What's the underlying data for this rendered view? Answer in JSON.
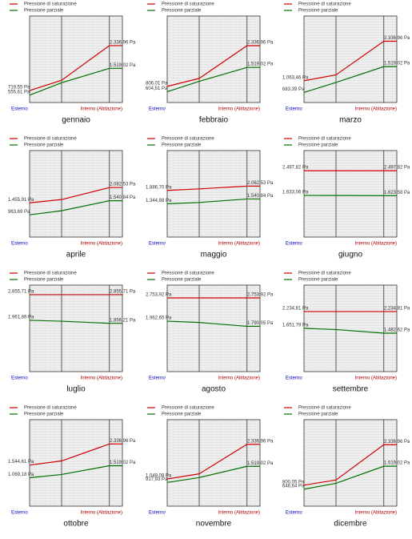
{
  "chart_data": [
    {
      "type": "line",
      "title": "gennaio",
      "categories": [
        "Esterno",
        null,
        null,
        "Interno (Abitazione)"
      ],
      "ylim": [
        290,
        3400
      ],
      "series": [
        {
          "name": "Pressione di saturazione",
          "color": "#d00000",
          "values": [
            719.55,
            1090,
            2336.96,
            2336.96
          ],
          "value_labels": [
            "719,55 Pa",
            null,
            null,
            "2.336,96 Pa"
          ]
        },
        {
          "name": "Pressione parziale",
          "color": "#007000",
          "values": [
            555.61,
            1000,
            1519.02,
            1519.02
          ],
          "value_labels": [
            "555,61 Pa",
            null,
            null,
            "1.519,02 Pa"
          ]
        }
      ]
    },
    {
      "type": "line",
      "title": "febbraio",
      "categories": [
        "Esterno",
        null,
        null,
        "Interno (Abitazione)"
      ],
      "ylim": [
        200,
        3450
      ],
      "series": [
        {
          "name": "Pressione di saturazione",
          "color": "#d00000",
          "values": [
            806.01,
            1106,
            2336.96,
            2336.96
          ],
          "value_labels": [
            "806,01 Pa",
            null,
            null,
            "2.336,96 Pa"
          ]
        },
        {
          "name": "Pressione parziale",
          "color": "#007000",
          "values": [
            604.51,
            995,
            1519.02,
            1519.02
          ],
          "value_labels": [
            "604,51 Pa",
            null,
            null,
            "1.519,02 Pa"
          ]
        }
      ]
    },
    {
      "type": "line",
      "title": "marzo",
      "categories": [
        "Esterno",
        null,
        null,
        "Interno (Abitazione)"
      ],
      "ylim": [
        360,
        3150
      ],
      "series": [
        {
          "name": "Pressione di saturazione",
          "color": "#d00000",
          "values": [
            1063.46,
            1253,
            2336.96,
            2336.96
          ],
          "value_labels": [
            "1.063,46 Pa",
            null,
            null,
            "2.336,96 Pa"
          ]
        },
        {
          "name": "Pressione parziale",
          "color": "#007000",
          "values": [
            683.39,
            1007,
            1519.02,
            1519.02
          ],
          "value_labels": [
            "683,39 Pa",
            null,
            null,
            "1.519,02 Pa"
          ]
        }
      ]
    },
    {
      "type": "line",
      "title": "aprile",
      "categories": [
        "Esterno",
        null,
        null,
        "Interno (Abitazione)"
      ],
      "ylim": [
        50,
        3600
      ],
      "series": [
        {
          "name": "Pressione di saturazione",
          "color": "#d00000",
          "values": [
            1455.91,
            1590,
            2082.53,
            2082.53
          ],
          "value_labels": [
            "1.455,91 Pa",
            null,
            null,
            "2.082,53 Pa"
          ]
        },
        {
          "name": "Pressione parziale",
          "color": "#007000",
          "values": [
            963.69,
            1130,
            1540.84,
            1540.84
          ],
          "value_labels": [
            "963,69 Pa",
            null,
            null,
            "1.540,84 Pa"
          ]
        }
      ]
    },
    {
      "type": "line",
      "title": "maggio",
      "categories": [
        "Esterno",
        null,
        null,
        "Interno (Abitazione)"
      ],
      "ylim": [
        0,
        3500
      ],
      "series": [
        {
          "name": "Pressione di saturazione",
          "color": "#d00000",
          "values": [
            1886.7,
            1950,
            2062.53,
            2062.53
          ],
          "value_labels": [
            "1.886,70 Pa",
            null,
            null,
            "2.062,53 Pa"
          ]
        },
        {
          "name": "Pressione parziale",
          "color": "#007000",
          "values": [
            1344.88,
            1400,
            1540.84,
            1540.84
          ],
          "value_labels": [
            "1.344,88 Pa",
            null,
            null,
            "1.540,84 Pa"
          ]
        }
      ]
    },
    {
      "type": "line",
      "title": "giugno",
      "categories": [
        "Esterno",
        null,
        null,
        "Interno (Abitazione)"
      ],
      "ylim": [
        180,
        3200
      ],
      "series": [
        {
          "name": "Pressione di saturazione",
          "color": "#d00000",
          "values": [
            2497.82,
            2497.82,
            2497.82,
            2497.82
          ],
          "value_labels": [
            "2.497,82 Pa",
            null,
            null,
            "2.497,82 Pa"
          ]
        },
        {
          "name": "Pressione parziale",
          "color": "#007000",
          "values": [
            1633.06,
            1630,
            1623.58,
            1623.58
          ],
          "value_labels": [
            "1.633,06 Pa",
            null,
            null,
            "1.623,58 Pa"
          ]
        }
      ]
    },
    {
      "type": "line",
      "title": "luglio",
      "categories": [
        "Esterno",
        null,
        null,
        "Interno (Abitazione)"
      ],
      "ylim": [
        170,
        3190
      ],
      "series": [
        {
          "name": "Pressione di saturazione",
          "color": "#d00000",
          "values": [
            2855.71,
            2855.71,
            2855.71,
            2855.71
          ],
          "value_labels": [
            "2.855,71 Pa",
            null,
            null,
            "2.855,71 Pa"
          ]
        },
        {
          "name": "Pressione parziale",
          "color": "#007000",
          "values": [
            1961.86,
            1930,
            1856.21,
            1856.21
          ],
          "value_labels": [
            "1.961,86 Pa",
            null,
            null,
            "1.856,21 Pa"
          ]
        }
      ]
    },
    {
      "type": "line",
      "title": "agosto",
      "categories": [
        "Esterno",
        null,
        null,
        "Interno (Abitazione)"
      ],
      "ylim": [
        250,
        3190
      ],
      "series": [
        {
          "name": "Pressione di saturazione",
          "color": "#d00000",
          "values": [
            2753.92,
            2753.92,
            2753.92,
            2753.92
          ],
          "value_labels": [
            "2.753,92 Pa",
            null,
            null,
            "2.753,92 Pa"
          ]
        },
        {
          "name": "Pressione parziale",
          "color": "#007000",
          "values": [
            1962.65,
            1920,
            1790.05,
            1790.05
          ],
          "value_labels": [
            "1.962,65 Pa",
            null,
            null,
            "1.790,05 Pa"
          ]
        }
      ]
    },
    {
      "type": "line",
      "title": "settembre",
      "categories": [
        "Esterno",
        null,
        null,
        "Interno (Abitazione)"
      ],
      "ylim": [
        150,
        3150
      ],
      "series": [
        {
          "name": "Pressione di saturazione",
          "color": "#d00000",
          "values": [
            2234.81,
            2234.81,
            2234.81,
            2234.81
          ],
          "value_labels": [
            "2.234,81 Pa",
            null,
            null,
            "2.234,81 Pa"
          ]
        },
        {
          "name": "Pressione parziale",
          "color": "#007000",
          "values": [
            1651.79,
            1610,
            1482.62,
            1482.62
          ],
          "value_labels": [
            "1.651,79 Pa",
            null,
            null,
            "1.482,62 Pa"
          ]
        }
      ]
    },
    {
      "type": "line",
      "title": "ottobre",
      "categories": [
        "Esterno",
        null,
        null,
        "Interno (Abitazione)"
      ],
      "ylim": [
        0,
        3250
      ],
      "series": [
        {
          "name": "Pressione di saturazione",
          "color": "#d00000",
          "values": [
            1544.61,
            1700,
            2336.96,
            2336.96
          ],
          "value_labels": [
            "1.544,61 Pa",
            null,
            null,
            "2.336,96 Pa"
          ]
        },
        {
          "name": "Pressione parziale",
          "color": "#007000",
          "values": [
            1069.18,
            1190,
            1519.02,
            1519.02
          ],
          "value_labels": [
            "1.069,18 Pa",
            null,
            null,
            "1.519,02 Pa"
          ]
        }
      ]
    },
    {
      "type": "line",
      "title": "novembre",
      "categories": [
        "Esterno",
        null,
        null,
        "Interno (Abitazione)"
      ],
      "ylim": [
        40,
        3250
      ],
      "series": [
        {
          "name": "Pressione di saturazione",
          "color": "#d00000",
          "values": [
            1049.09,
            1240,
            2336.96,
            2336.96
          ],
          "value_labels": [
            "1.049,09 Pa",
            null,
            null,
            "2.336,96 Pa"
          ]
        },
        {
          "name": "Pressione parziale",
          "color": "#007000",
          "values": [
            917.93,
            1100,
            1519.02,
            1519.02
          ],
          "value_labels": [
            "917,93 Pa",
            null,
            null,
            "1.519,02 Pa"
          ]
        }
      ]
    },
    {
      "type": "line",
      "title": "dicembre",
      "categories": [
        "Esterno",
        null,
        null,
        "Interno (Abitazione)"
      ],
      "ylim": [
        0,
        3290
      ],
      "series": [
        {
          "name": "Pressione di saturazione",
          "color": "#d00000",
          "values": [
            800.05,
            996,
            2336.96,
            2336.96
          ],
          "value_labels": [
            "800,05 Pa",
            null,
            null,
            "2.336,96 Pa"
          ]
        },
        {
          "name": "Pressione parziale",
          "color": "#007000",
          "values": [
            646.64,
            870,
            1519.02,
            1519.02
          ],
          "value_labels": [
            "646,64 Pa",
            null,
            null,
            "1.519,02 Pa"
          ]
        }
      ]
    }
  ]
}
